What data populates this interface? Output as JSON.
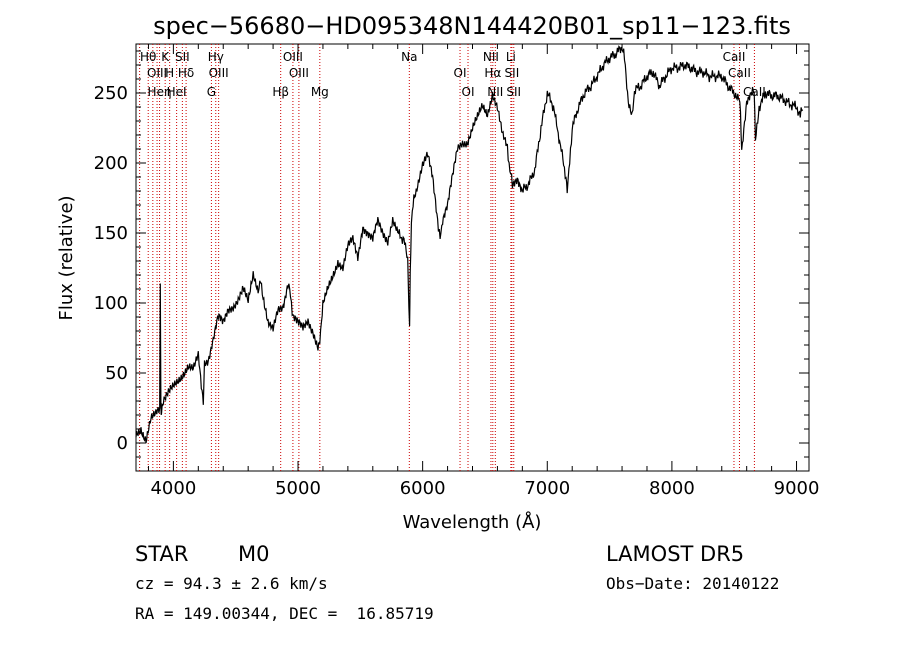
{
  "chart_data": {
    "type": "line",
    "title": "spec−56680−HD095348N144420B01_sp11−123.fits",
    "xlabel": "Wavelength (Å)",
    "ylabel": "Flux (relative)",
    "xlim": [
      3700,
      9100
    ],
    "ylim": [
      -20,
      285
    ],
    "xticks": [
      4000,
      5000,
      6000,
      7000,
      8000,
      9000
    ],
    "yticks": [
      0,
      50,
      100,
      150,
      200,
      250
    ],
    "grid": false,
    "legend": "none",
    "line_color": "#000000",
    "marker_color": "#cc0000",
    "series": [
      {
        "x": [
          3700,
          3740,
          3780,
          3820,
          3860,
          3890,
          3895,
          3900,
          3905,
          3920,
          3960,
          4000,
          4040,
          4080,
          4120,
          4160,
          4200,
          4230,
          4240,
          4250,
          4280,
          4320,
          4360,
          4400,
          4440,
          4480,
          4520,
          4560,
          4600,
          4640,
          4680,
          4700,
          4720,
          4760,
          4800,
          4840,
          4880,
          4920,
          4940,
          4960,
          5000,
          5040,
          5080,
          5120,
          5160,
          5175,
          5200,
          5240,
          5280,
          5320,
          5360,
          5400,
          5440,
          5480,
          5520,
          5560,
          5600,
          5640,
          5680,
          5720,
          5760,
          5800,
          5850,
          5880,
          5895,
          5900,
          5910,
          5930,
          5960,
          6000,
          6040,
          6080,
          6120,
          6140,
          6160,
          6200,
          6240,
          6280,
          6320,
          6360,
          6400,
          6440,
          6480,
          6520,
          6560,
          6600,
          6640,
          6680,
          6700,
          6720,
          6760,
          6800,
          6850,
          6900,
          6950,
          7000,
          7050,
          7100,
          7150,
          7160,
          7180,
          7200,
          7250,
          7300,
          7350,
          7400,
          7450,
          7500,
          7550,
          7600,
          7620,
          7650,
          7680,
          7700,
          7750,
          7800,
          7850,
          7900,
          7950,
          8000,
          8050,
          8100,
          8150,
          8200,
          8250,
          8300,
          8350,
          8400,
          8450,
          8500,
          8540,
          8550,
          8560,
          8600,
          8640,
          8660,
          8670,
          8700,
          8750,
          8800,
          8850,
          8900,
          8950,
          9000,
          9030,
          9050
        ],
        "y": [
          5,
          10,
          3,
          18,
          20,
          25,
          112,
          28,
          20,
          30,
          35,
          40,
          45,
          50,
          55,
          52,
          62,
          38,
          30,
          55,
          60,
          75,
          90,
          85,
          95,
          98,
          103,
          110,
          100,
          120,
          110,
          115,
          105,
          85,
          80,
          95,
          98,
          115,
          105,
          90,
          85,
          82,
          88,
          80,
          68,
          75,
          98,
          110,
          120,
          130,
          125,
          140,
          145,
          133,
          155,
          150,
          145,
          158,
          150,
          145,
          160,
          150,
          145,
          130,
          80,
          120,
          158,
          175,
          185,
          198,
          205,
          190,
          160,
          145,
          160,
          170,
          190,
          210,
          215,
          215,
          225,
          232,
          240,
          235,
          250,
          240,
          220,
          210,
          195,
          185,
          190,
          180,
          185,
          195,
          225,
          250,
          240,
          215,
          190,
          182,
          200,
          225,
          240,
          250,
          255,
          262,
          270,
          275,
          278,
          283,
          275,
          245,
          232,
          252,
          255,
          262,
          265,
          255,
          262,
          268,
          268,
          270,
          268,
          265,
          265,
          262,
          262,
          262,
          255,
          250,
          248,
          238,
          208,
          245,
          252,
          250,
          215,
          240,
          250,
          248,
          248,
          245,
          242,
          240,
          235,
          238
        ]
      }
    ],
    "line_markers": [
      {
        "x": 3729,
        "label": ""
      },
      {
        "x": 3798,
        "label": "Hθ"
      },
      {
        "x": 3835,
        "label": ""
      },
      {
        "x": 3869,
        "label": "OIII"
      },
      {
        "x": 3889,
        "label": "Heη"
      },
      {
        "x": 3934,
        "label": "K"
      },
      {
        "x": 3970,
        "label": "H"
      },
      {
        "x": 4026,
        "label": "HeI"
      },
      {
        "x": 4072,
        "label": "SII"
      },
      {
        "x": 4102,
        "label": "Hδ"
      },
      {
        "x": 4305,
        "label": "G"
      },
      {
        "x": 4340,
        "label": "Hγ"
      },
      {
        "x": 4363,
        "label": "OIII"
      },
      {
        "x": 4861,
        "label": "Hβ"
      },
      {
        "x": 4959,
        "label": "OIII"
      },
      {
        "x": 5007,
        "label": "OIII"
      },
      {
        "x": 5175,
        "label": "Mg"
      },
      {
        "x": 5893,
        "label": "Na"
      },
      {
        "x": 6300,
        "label": "OI"
      },
      {
        "x": 6364,
        "label": "OI"
      },
      {
        "x": 6548,
        "label": "NII"
      },
      {
        "x": 6563,
        "label": "Hα"
      },
      {
        "x": 6583,
        "label": "NII"
      },
      {
        "x": 6708,
        "label": "Li"
      },
      {
        "x": 6716,
        "label": "SII"
      },
      {
        "x": 6731,
        "label": "SII"
      },
      {
        "x": 8498,
        "label": "CaII"
      },
      {
        "x": 8542,
        "label": "CaII"
      },
      {
        "x": 8662,
        "label": "CaII"
      }
    ]
  },
  "info": {
    "class_label": "STAR",
    "subclass": "M0",
    "survey": "LAMOST DR5",
    "cz": "cz = 94.3 ± 2.6 km/s",
    "obs_date": "Obs−Date: 20140122",
    "radec": "RA = 149.00344, DEC =  16.85719"
  }
}
